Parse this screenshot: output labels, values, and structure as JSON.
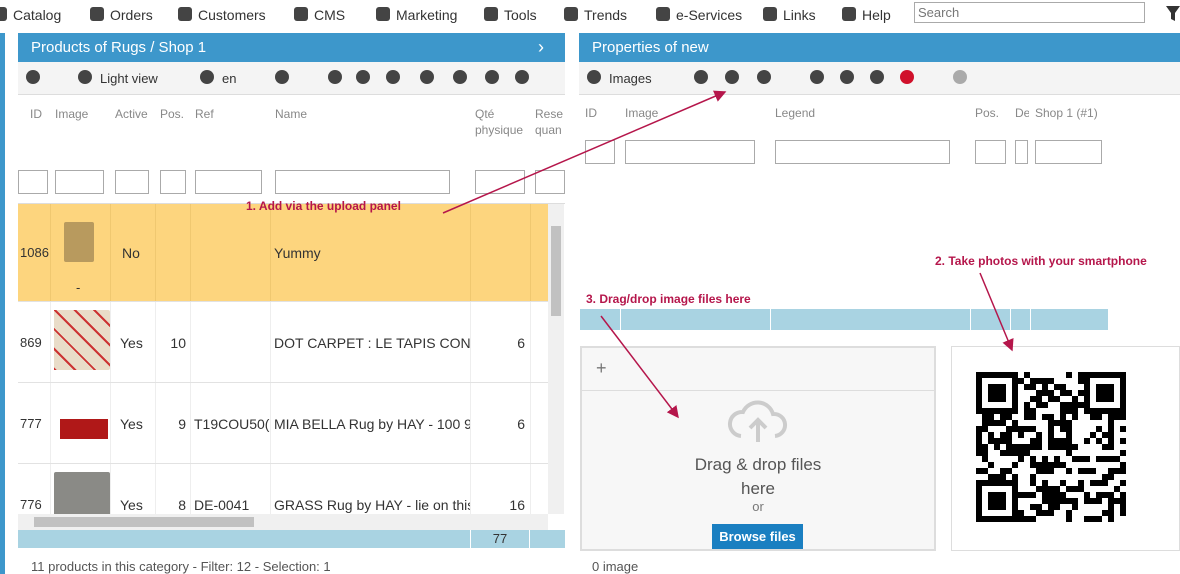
{
  "menu": [
    "Catalog",
    "Orders",
    "Customers",
    "CMS",
    "Marketing",
    "Tools",
    "Trends",
    "e-Services",
    "Links",
    "Help"
  ],
  "search_placeholder": "Search",
  "left_panel": {
    "title": "Products of Rugs / Shop 1",
    "toolbar": [
      "Light view",
      "en"
    ],
    "columns": [
      "ID",
      "Image",
      "Active",
      "Pos.",
      "Ref",
      "Name",
      "Qté physique",
      "Rese quan"
    ],
    "rows": [
      {
        "id": "1086",
        "image_caption": "-",
        "active": "No",
        "name": "Yummy"
      },
      {
        "id": "869",
        "active": "Yes",
        "pos": "10",
        "name": "DOT CARPET : LE TAPIS CON",
        "qty": "6"
      },
      {
        "id": "777",
        "active": "Yes",
        "pos": "9",
        "ref": "T19COU50(",
        "name": "MIA BELLA Rug by HAY - 100 9",
        "qty": "6"
      },
      {
        "id": "776",
        "active": "Yes",
        "pos": "8",
        "ref": "DE-0041",
        "name": "GRASS Rug by HAY - lie on this",
        "qty": "16"
      }
    ],
    "total_qty": "77",
    "status": "11 products in this category - Filter: 12 - Selection: 1"
  },
  "right_panel": {
    "title": "Properties of new",
    "toolbar": [
      "Images"
    ],
    "columns": [
      "ID",
      "Image",
      "Legend",
      "Pos.",
      "De",
      "Shop 1 (#1)"
    ],
    "upload": {
      "add": "+",
      "drag_text": "Drag & drop files here",
      "or": "or",
      "button": "Browse files"
    },
    "status": "0 image"
  },
  "annotations": [
    "1. Add via the upload panel",
    "2. Take photos with your smartphone",
    "3. Drag/drop image files here"
  ]
}
